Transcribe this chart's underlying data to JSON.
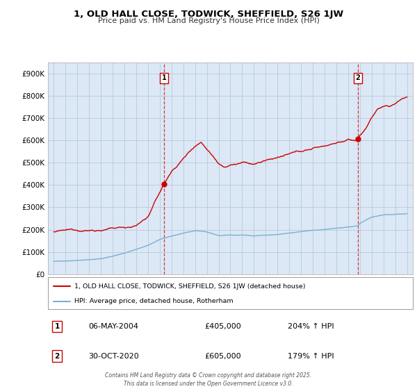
{
  "title": "1, OLD HALL CLOSE, TODWICK, SHEFFIELD, S26 1JW",
  "subtitle": "Price paid vs. HM Land Registry's House Price Index (HPI)",
  "bg_color": "#dce8f5",
  "plot_bg_color": "#dce8f5",
  "red_line_color": "#cc0000",
  "blue_line_color": "#7aafd4",
  "grid_color": "#b0c4d8",
  "annotation1": {
    "label": "1",
    "date_x": 2004.35,
    "price": 405000,
    "date_str": "06-MAY-2004",
    "price_str": "£405,000",
    "hpi_str": "204% ↑ HPI"
  },
  "annotation2": {
    "label": "2",
    "date_x": 2020.83,
    "price": 605000,
    "date_str": "30-OCT-2020",
    "price_str": "£605,000",
    "hpi_str": "179% ↑ HPI"
  },
  "ylim": [
    0,
    950000
  ],
  "xlim": [
    1994.5,
    2025.5
  ],
  "yticks": [
    0,
    100000,
    200000,
    300000,
    400000,
    500000,
    600000,
    700000,
    800000,
    900000
  ],
  "xticks": [
    1995,
    1996,
    1997,
    1998,
    1999,
    2000,
    2001,
    2002,
    2003,
    2004,
    2005,
    2006,
    2007,
    2008,
    2009,
    2010,
    2011,
    2012,
    2013,
    2014,
    2015,
    2016,
    2017,
    2018,
    2019,
    2020,
    2021,
    2022,
    2023,
    2024,
    2025
  ],
  "legend_red_label": "1, OLD HALL CLOSE, TODWICK, SHEFFIELD, S26 1JW (detached house)",
  "legend_blue_label": "HPI: Average price, detached house, Rotherham",
  "footer": "Contains HM Land Registry data © Crown copyright and database right 2025.\nThis data is licensed under the Open Government Licence v3.0.",
  "table_rows": [
    {
      "num": "1",
      "date": "06-MAY-2004",
      "price": "£405,000",
      "hpi": "204% ↑ HPI"
    },
    {
      "num": "2",
      "date": "30-OCT-2020",
      "price": "£605,000",
      "hpi": "179% ↑ HPI"
    }
  ]
}
